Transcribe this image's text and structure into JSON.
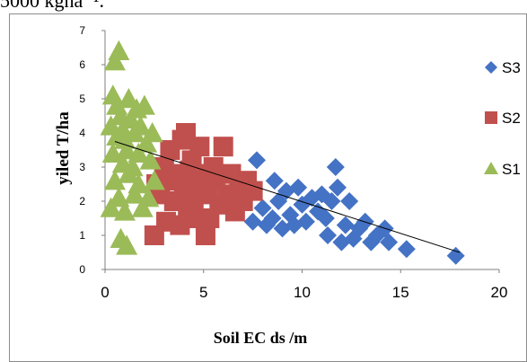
{
  "header_text": "5000 kgha⁻¹.",
  "chart_data": {
    "type": "scatter",
    "title": "",
    "xlabel": "Soil EC ds /m",
    "ylabel": "yiled T/ha",
    "xlim": [
      0,
      20
    ],
    "ylim": [
      0,
      7
    ],
    "xticks": [
      "0",
      "5",
      "10",
      "15",
      "20"
    ],
    "yticks": [
      "0",
      "1",
      "2",
      "3",
      "4",
      "5",
      "6",
      "7"
    ],
    "grid": false,
    "legend_position": "right",
    "series": [
      {
        "name": "S3",
        "marker": "diamond",
        "color": "#4472C4",
        "points": [
          [
            7.5,
            1.4
          ],
          [
            7.7,
            3.2
          ],
          [
            8.0,
            1.8
          ],
          [
            8.2,
            1.3
          ],
          [
            8.5,
            1.5
          ],
          [
            8.6,
            2.6
          ],
          [
            8.8,
            2.0
          ],
          [
            9.0,
            1.2
          ],
          [
            9.2,
            2.3
          ],
          [
            9.4,
            1.6
          ],
          [
            9.6,
            1.3
          ],
          [
            9.8,
            2.4
          ],
          [
            10.0,
            1.9
          ],
          [
            10.2,
            1.4
          ],
          [
            10.5,
            2.1
          ],
          [
            10.8,
            1.7
          ],
          [
            11.0,
            2.2
          ],
          [
            11.2,
            1.5
          ],
          [
            11.3,
            1.0
          ],
          [
            11.5,
            2.0
          ],
          [
            11.7,
            3.0
          ],
          [
            11.8,
            2.4
          ],
          [
            12.0,
            0.8
          ],
          [
            12.2,
            1.3
          ],
          [
            12.4,
            2.0
          ],
          [
            12.6,
            0.9
          ],
          [
            12.9,
            1.2
          ],
          [
            13.2,
            1.4
          ],
          [
            13.5,
            0.8
          ],
          [
            13.8,
            1.0
          ],
          [
            14.2,
            1.2
          ],
          [
            14.4,
            0.8
          ],
          [
            15.3,
            0.6
          ],
          [
            17.8,
            0.4
          ]
        ]
      },
      {
        "name": "S2",
        "marker": "square",
        "color": "#C0504D",
        "points": [
          [
            2.5,
            1.0
          ],
          [
            2.6,
            2.5
          ],
          [
            2.8,
            2.2
          ],
          [
            3.0,
            3.0
          ],
          [
            3.1,
            1.4
          ],
          [
            3.3,
            3.5
          ],
          [
            3.5,
            2.0
          ],
          [
            3.6,
            2.8
          ],
          [
            3.8,
            1.3
          ],
          [
            3.9,
            3.8
          ],
          [
            4.0,
            2.4
          ],
          [
            4.1,
            4.0
          ],
          [
            4.2,
            1.8
          ],
          [
            4.4,
            3.2
          ],
          [
            4.5,
            2.0
          ],
          [
            4.6,
            1.5
          ],
          [
            4.8,
            3.6
          ],
          [
            5.0,
            2.8
          ],
          [
            5.1,
            1.0
          ],
          [
            5.2,
            2.2
          ],
          [
            5.3,
            1.5
          ],
          [
            5.5,
            3.0
          ],
          [
            5.6,
            2.6
          ],
          [
            5.8,
            1.9
          ],
          [
            6.0,
            3.6
          ],
          [
            6.2,
            2.2
          ],
          [
            6.4,
            2.8
          ],
          [
            6.6,
            1.7
          ],
          [
            6.8,
            2.4
          ],
          [
            7.0,
            2.0
          ],
          [
            7.2,
            2.6
          ],
          [
            7.5,
            2.3
          ],
          [
            4.3,
            2.9
          ],
          [
            3.4,
            2.6
          ],
          [
            4.7,
            2.3
          ]
        ]
      },
      {
        "name": "S1",
        "marker": "triangle",
        "color": "#9BBB59",
        "points": [
          [
            0.5,
            6.1
          ],
          [
            0.7,
            6.4
          ],
          [
            0.4,
            5.1
          ],
          [
            0.6,
            4.8
          ],
          [
            0.3,
            4.2
          ],
          [
            0.8,
            4.5
          ],
          [
            1.0,
            3.8
          ],
          [
            0.4,
            3.4
          ],
          [
            0.9,
            3.1
          ],
          [
            1.2,
            5.0
          ],
          [
            1.3,
            4.4
          ],
          [
            1.5,
            4.0
          ],
          [
            1.1,
            3.5
          ],
          [
            1.6,
            4.7
          ],
          [
            1.8,
            4.2
          ],
          [
            2.0,
            4.8
          ],
          [
            2.1,
            3.7
          ],
          [
            1.4,
            3.0
          ],
          [
            0.5,
            2.6
          ],
          [
            0.7,
            2.1
          ],
          [
            0.3,
            1.8
          ],
          [
            1.0,
            1.7
          ],
          [
            1.5,
            2.2
          ],
          [
            1.7,
            2.5
          ],
          [
            2.2,
            2.1
          ],
          [
            2.3,
            3.2
          ],
          [
            2.4,
            4.0
          ],
          [
            0.8,
            0.9
          ],
          [
            1.1,
            0.7
          ],
          [
            0.6,
            3.9
          ],
          [
            1.9,
            1.8
          ],
          [
            2.5,
            2.6
          ],
          [
            1.2,
            2.8
          ],
          [
            0.9,
            4.1
          ],
          [
            1.7,
            3.4
          ]
        ]
      }
    ],
    "trendline": {
      "x": [
        0.5,
        18.0
      ],
      "y": [
        3.75,
        0.5
      ],
      "color": "#000000"
    }
  }
}
